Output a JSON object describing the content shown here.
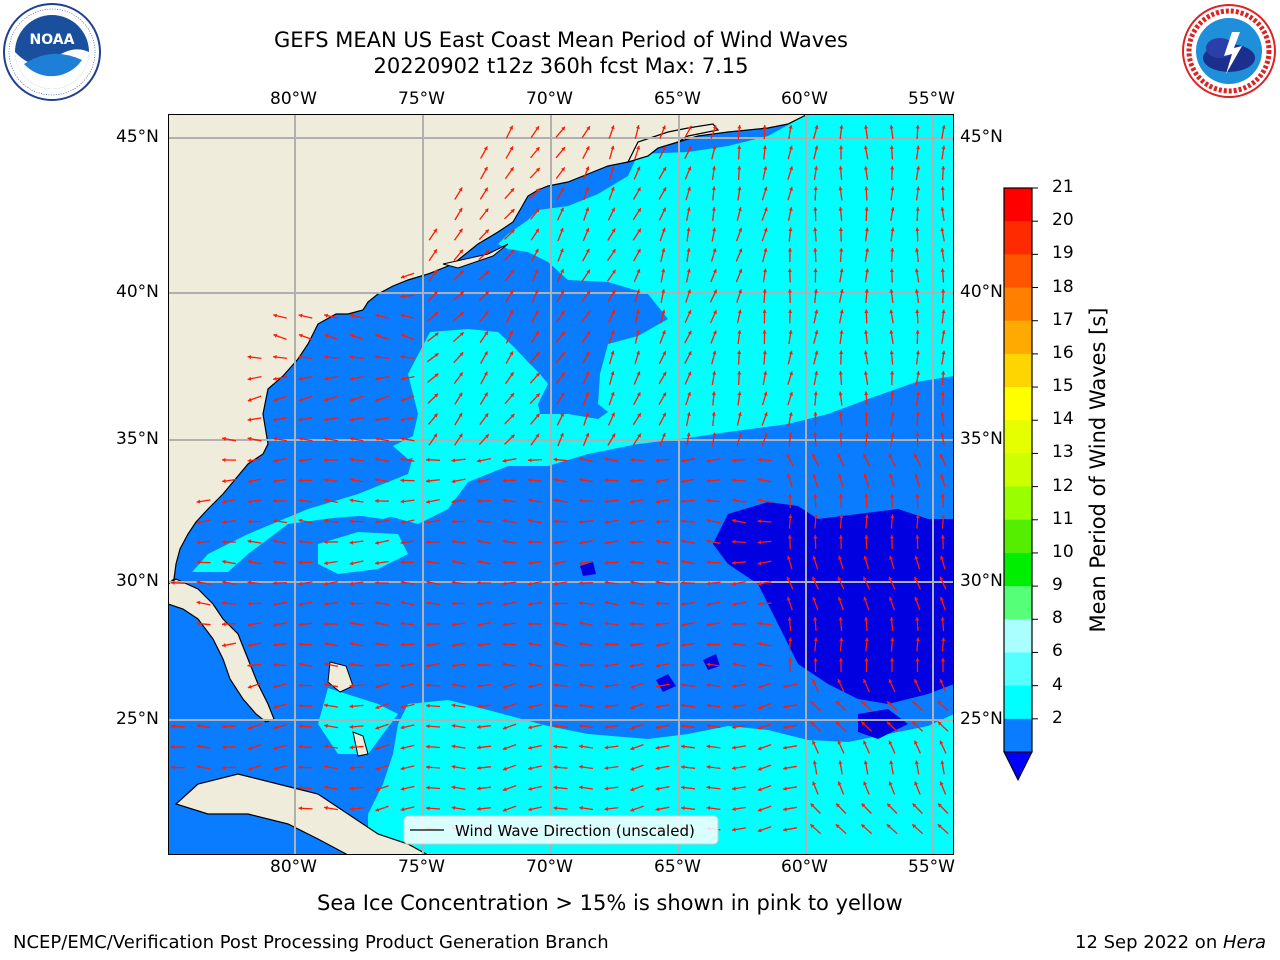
{
  "title": {
    "line1": "GEFS MEAN US East Coast Mean Period of Wind Waves",
    "line2": "20220902 t12z 360h fcst   Max: 7.15"
  },
  "logos": {
    "noaa_text": "NOAA",
    "noaa_ring": "NATIONAL OCEANIC AND ATMOSPHERIC ADMINISTRATION · U.S. DEPARTMENT OF COMMERCE",
    "nws_ring": "NATIONAL WEATHER SERVICE"
  },
  "map": {
    "lon_ticks_top": [
      "80°W",
      "75°W",
      "70°W",
      "65°W",
      "60°W",
      "55°W"
    ],
    "lon_ticks_bottom": [
      "80°W",
      "75°W",
      "70°W",
      "65°W",
      "60°W",
      "55°W"
    ],
    "lat_ticks_left": [
      "45°N",
      "40°N",
      "35°N",
      "30°N",
      "25°N"
    ],
    "lat_ticks_right": [
      "45°N",
      "40°N",
      "35°N",
      "30°N",
      "25°N"
    ],
    "legend_label": "Wind Wave Direction (unscaled)",
    "colors": {
      "land": "#efecdc",
      "ocean_2_4": "#0a7cff",
      "ocean_4_6": "#00ffff",
      "ocean_below_2": "#0000e0",
      "arrow": "#ff1a00",
      "grid": "#b0b0b0"
    }
  },
  "colorbar": {
    "label": "Mean Period of Wind Waves [s]",
    "ticks": [
      "21",
      "20",
      "19",
      "18",
      "17",
      "16",
      "15",
      "14",
      "13",
      "12",
      "11",
      "10",
      "9",
      "8",
      "6",
      "4",
      "2"
    ],
    "bands": [
      "#ff0000",
      "#ff2a00",
      "#ff5500",
      "#ff8000",
      "#ffaa00",
      "#ffd500",
      "#ffff00",
      "#e6ff00",
      "#ccff00",
      "#99ff00",
      "#55ee00",
      "#00ee00",
      "#55ff77",
      "#aaffff",
      "#55ffff",
      "#00ffff",
      "#0a7cff"
    ],
    "under_color": "#0000ff"
  },
  "footer": {
    "note": "Sea Ice Concentration > 15% is shown in pink to yellow",
    "credit": "NCEP/EMC/Verification Post Processing Product Generation Branch",
    "date_prefix": "12 Sep 2022 on ",
    "machine": "Hera"
  }
}
